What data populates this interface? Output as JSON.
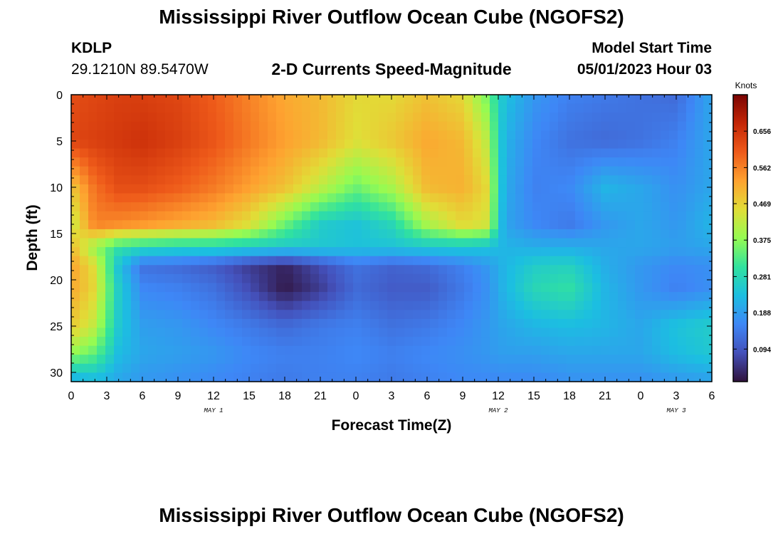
{
  "header": {
    "title": "Mississippi River Outflow Ocean Cube (NGOFS2)",
    "station_id": "KDLP",
    "station_coords": "29.1210N  89.5470W",
    "subtitle": "2-D Currents Speed-Magnitude",
    "model_start_label": "Model Start Time",
    "model_start_value": "05/01/2023 Hour 03"
  },
  "footer": {
    "title": "Mississippi River Outflow Ocean Cube (NGOFS2)"
  },
  "chart_data": {
    "type": "heatmap",
    "title": "2-D Currents Speed-Magnitude",
    "xlabel": "Forecast Time(Z)",
    "ylabel": "Depth (ft)",
    "x_tick_labels": [
      "0",
      "3",
      "6",
      "9",
      "12",
      "15",
      "18",
      "21",
      "0",
      "3",
      "6",
      "9",
      "12",
      "15",
      "18",
      "21",
      "0",
      "3",
      "6"
    ],
    "x_range_hours": [
      0,
      54
    ],
    "date_labels": [
      {
        "label": "MAY 1",
        "hour": 12
      },
      {
        "label": "MAY 2",
        "hour": 36
      },
      {
        "label": "MAY 3",
        "hour": 51
      }
    ],
    "y_tick_labels": [
      "0",
      "5",
      "10",
      "15",
      "20",
      "25",
      "30"
    ],
    "y_range_ft": [
      0,
      31
    ],
    "y_inverted": true,
    "colorbar": {
      "unit_label": "Knots",
      "tick_labels": [
        "0.656",
        "0.562",
        "0.469",
        "0.375",
        "0.281",
        "0.188",
        "0.094"
      ],
      "tick_values": [
        0.656,
        0.562,
        0.469,
        0.375,
        0.281,
        0.188,
        0.094
      ],
      "range": [
        0.01,
        0.75
      ],
      "colormap": "turbo"
    },
    "speed_grid_knots": {
      "depths_ft": [
        0,
        5,
        10,
        14,
        16.5,
        18.5,
        21,
        25,
        28,
        31
      ],
      "hours": [
        0,
        2,
        4,
        6,
        9,
        12,
        15,
        18,
        21,
        24,
        27,
        30,
        33,
        35,
        36.5,
        39,
        42,
        45,
        48,
        51,
        54
      ],
      "rows": [
        [
          0.62,
          0.63,
          0.64,
          0.64,
          0.63,
          0.6,
          0.56,
          0.52,
          0.5,
          0.46,
          0.46,
          0.49,
          0.46,
          0.36,
          0.24,
          0.18,
          0.15,
          0.14,
          0.13,
          0.12,
          0.2
        ],
        [
          0.63,
          0.64,
          0.65,
          0.66,
          0.64,
          0.61,
          0.57,
          0.53,
          0.5,
          0.45,
          0.48,
          0.52,
          0.5,
          0.42,
          0.22,
          0.16,
          0.13,
          0.12,
          0.13,
          0.15,
          0.2
        ],
        [
          0.48,
          0.58,
          0.62,
          0.62,
          0.6,
          0.57,
          0.53,
          0.49,
          0.42,
          0.35,
          0.4,
          0.5,
          0.51,
          0.46,
          0.21,
          0.15,
          0.16,
          0.22,
          0.2,
          0.17,
          0.2
        ],
        [
          0.42,
          0.56,
          0.55,
          0.54,
          0.52,
          0.5,
          0.45,
          0.35,
          0.26,
          0.24,
          0.28,
          0.4,
          0.46,
          0.44,
          0.2,
          0.16,
          0.14,
          0.18,
          0.2,
          0.18,
          0.22
        ],
        [
          0.5,
          0.38,
          0.3,
          0.28,
          0.27,
          0.27,
          0.26,
          0.25,
          0.25,
          0.24,
          0.24,
          0.25,
          0.25,
          0.24,
          0.22,
          0.21,
          0.21,
          0.2,
          0.2,
          0.19,
          0.2
        ],
        [
          0.53,
          0.45,
          0.24,
          0.13,
          0.12,
          0.1,
          0.06,
          0.03,
          0.08,
          0.13,
          0.11,
          0.12,
          0.15,
          0.18,
          0.22,
          0.26,
          0.27,
          0.21,
          0.18,
          0.16,
          0.17
        ],
        [
          0.52,
          0.46,
          0.26,
          0.16,
          0.15,
          0.13,
          0.08,
          0.02,
          0.06,
          0.12,
          0.1,
          0.1,
          0.14,
          0.17,
          0.22,
          0.28,
          0.3,
          0.22,
          0.18,
          0.15,
          0.17
        ],
        [
          0.48,
          0.42,
          0.25,
          0.19,
          0.18,
          0.16,
          0.14,
          0.12,
          0.14,
          0.15,
          0.13,
          0.14,
          0.16,
          0.18,
          0.2,
          0.22,
          0.23,
          0.22,
          0.2,
          0.24,
          0.26
        ],
        [
          0.38,
          0.34,
          0.23,
          0.2,
          0.19,
          0.18,
          0.16,
          0.15,
          0.15,
          0.16,
          0.15,
          0.16,
          0.17,
          0.18,
          0.19,
          0.19,
          0.2,
          0.2,
          0.2,
          0.23,
          0.25
        ],
        [
          0.2,
          0.22,
          0.2,
          0.18,
          0.17,
          0.16,
          0.15,
          0.14,
          0.15,
          0.15,
          0.14,
          0.15,
          0.16,
          0.16,
          0.16,
          0.16,
          0.17,
          0.17,
          0.17,
          0.18,
          0.19
        ]
      ]
    },
    "grid": false,
    "legend_placement": "colorbar-right"
  }
}
